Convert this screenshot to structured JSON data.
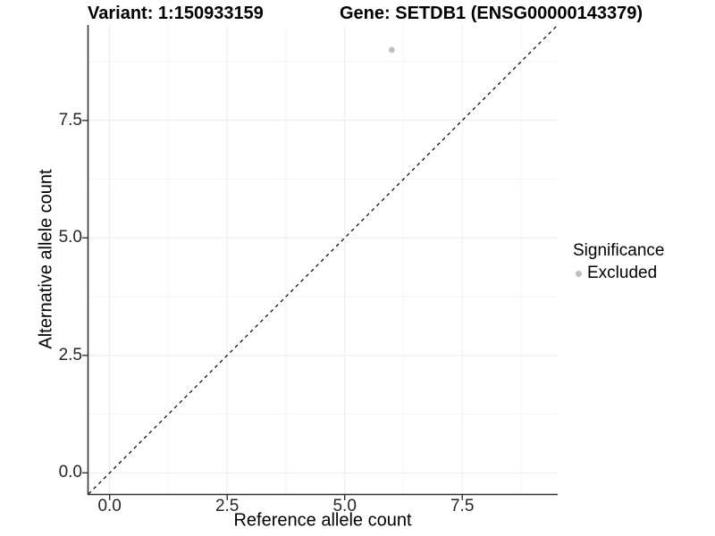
{
  "header": {
    "variant_title": "Variant: 1:150933159",
    "gene_title": "Gene: SETDB1 (ENSG00000143379)"
  },
  "chart_data": {
    "type": "scatter",
    "title": "Variant: 1:150933159  /  Gene: SETDB1 (ENSG00000143379)",
    "xlabel": "Reference allele count",
    "ylabel": "Alternative allele count",
    "xlim": [
      -0.45,
      9.53
    ],
    "ylim": [
      -0.45,
      9.53
    ],
    "x_ticks": [
      0,
      2.5,
      5,
      7.5
    ],
    "x_tick_labels": [
      "0.0",
      "2.5",
      "5.0",
      "7.5"
    ],
    "y_ticks": [
      0,
      2.5,
      5,
      7.5
    ],
    "y_tick_labels": [
      "0.0",
      "2.5",
      "5.0",
      "7.5"
    ],
    "x_minor_ticks": [
      1.25,
      3.75,
      6.25,
      8.75
    ],
    "y_minor_ticks": [
      1.25,
      3.75,
      6.25,
      8.75
    ],
    "grid": "major+minor",
    "points": [
      {
        "x": 6,
        "y": 9,
        "series": "Excluded"
      }
    ],
    "identity_line": {
      "slope": 1,
      "intercept": 0,
      "style": "dashed"
    },
    "legend": {
      "position": "right",
      "title": "Significance",
      "items": [
        {
          "label": "Excluded",
          "color": "#bfbfbf"
        }
      ]
    },
    "colors": {
      "point": "#bfbfbf",
      "identity_line": "#000000",
      "grid_major": "#ececec",
      "grid_minor": "#f5f5f5",
      "axis_line": "#333333",
      "tick_mark": "#333333",
      "text": "#000000"
    }
  }
}
